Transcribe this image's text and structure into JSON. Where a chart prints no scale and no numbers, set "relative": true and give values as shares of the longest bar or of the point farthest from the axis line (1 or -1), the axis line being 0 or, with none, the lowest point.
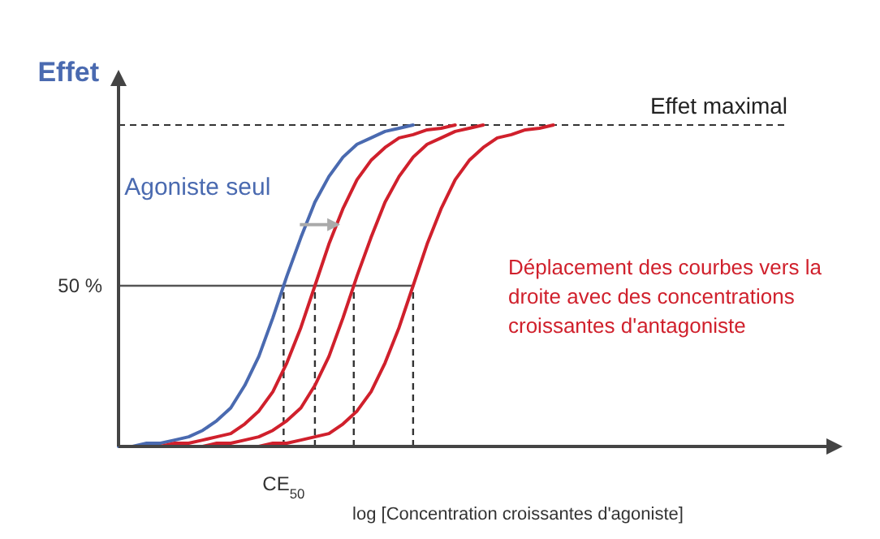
{
  "chart_data": {
    "type": "line",
    "relative": true,
    "ylabel": "Effet",
    "xlabel": "log [Concentration croissantes d'agoniste]",
    "line_style": "solid",
    "categories": [
      null,
      null,
      null,
      null,
      null,
      null,
      null,
      null,
      null,
      null,
      null,
      null,
      null,
      null,
      null,
      null,
      null,
      null,
      null,
      null,
      null,
      null,
      null,
      null,
      null,
      null,
      null,
      null,
      null,
      null,
      null,
      null,
      null,
      null,
      null,
      null,
      null,
      null,
      null,
      null,
      null,
      null,
      null,
      null,
      null,
      null,
      null,
      null,
      null,
      null,
      null
    ],
    "series": [
      {
        "name": "Agoniste seul",
        "color": "#4a6ab0",
        "values": [
          0,
          0,
          0.01,
          0.01,
          0.02,
          0.03,
          0.05,
          0.08,
          0.12,
          0.19,
          0.28,
          0.4,
          0.53,
          0.65,
          0.76,
          0.84,
          0.9,
          0.94,
          0.96,
          0.98,
          0.99,
          1,
          null,
          null,
          null,
          null,
          null,
          null,
          null,
          null,
          null,
          null,
          null,
          null,
          null,
          null,
          null,
          null,
          null,
          null,
          null,
          null,
          null,
          null,
          null,
          null,
          null,
          null,
          null,
          null,
          null
        ]
      },
      {
        "color": "#d0202c",
        "values": [
          null,
          null,
          null,
          0,
          0.01,
          0.01,
          0.02,
          0.03,
          0.04,
          0.07,
          0.11,
          0.17,
          0.26,
          0.37,
          0.5,
          0.63,
          0.74,
          0.83,
          0.89,
          0.93,
          0.96,
          0.97,
          0.985,
          0.99,
          1,
          null,
          null,
          null,
          null,
          null,
          null,
          null,
          null,
          null,
          null,
          null,
          null,
          null,
          null,
          null,
          null,
          null,
          null,
          null,
          null,
          null,
          null,
          null,
          null,
          null,
          null
        ]
      },
      {
        "color": "#d0202c",
        "values": [
          null,
          null,
          null,
          null,
          null,
          null,
          0,
          0.01,
          0.01,
          0.02,
          0.03,
          0.05,
          0.08,
          0.12,
          0.19,
          0.28,
          0.4,
          0.53,
          0.65,
          0.76,
          0.84,
          0.9,
          0.94,
          0.96,
          0.98,
          0.99,
          1,
          null,
          null,
          null,
          null,
          null,
          null,
          null,
          null,
          null,
          null,
          null,
          null,
          null,
          null,
          null,
          null,
          null,
          null,
          null,
          null,
          null,
          null,
          null,
          null
        ]
      },
      {
        "color": "#d0202c",
        "values": [
          null,
          null,
          null,
          null,
          null,
          null,
          null,
          null,
          null,
          null,
          0,
          0.01,
          0.01,
          0.02,
          0.03,
          0.04,
          0.07,
          0.11,
          0.17,
          0.26,
          0.37,
          0.5,
          0.63,
          0.74,
          0.83,
          0.89,
          0.93,
          0.96,
          0.97,
          0.985,
          0.99,
          1,
          null,
          null,
          null,
          null,
          null,
          null,
          null,
          null,
          null,
          null,
          null,
          null,
          null,
          null,
          null,
          null,
          null,
          null,
          null
        ]
      }
    ],
    "ref_lines": [
      {
        "axis": "y",
        "value": 1,
        "label": "Effet maximal",
        "line_style": "dashed",
        "color": "#333333"
      },
      {
        "axis": "y",
        "value": 0.5,
        "label": "50 %",
        "line_style": "solid",
        "color": "#555555"
      }
    ],
    "annotations": [
      "Déplacement des courbes vers la droite avec des concentrations croissantes d'antagoniste",
      "CE$_{50}$"
    ]
  }
}
